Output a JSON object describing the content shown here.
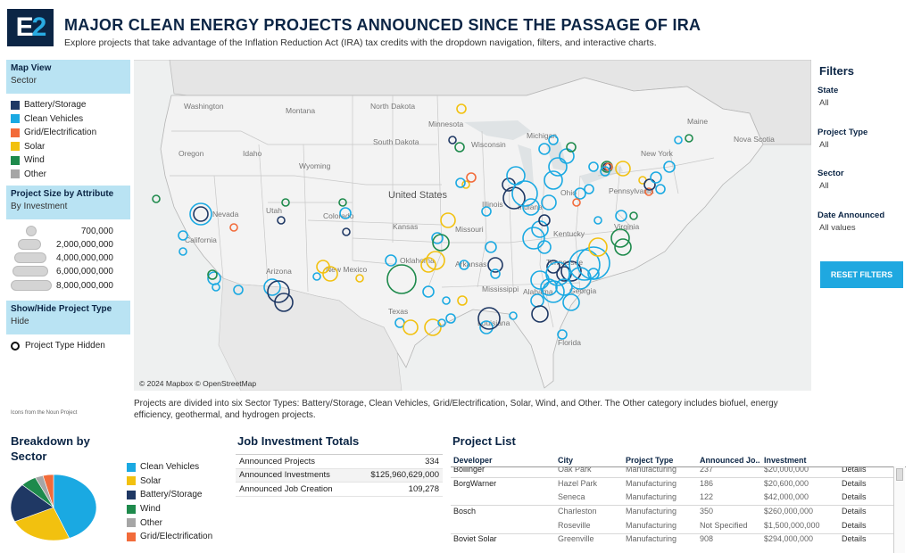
{
  "header": {
    "logo_text": "E2",
    "title": "MAJOR CLEAN ENERGY PROJECTS ANNOUNCED SINCE THE PASSAGE OF IRA",
    "subtitle": "Explore projects that take advantage of the Inflation Reduction Act (IRA) tax credits with the dropdown navigation, filters, and interactive charts."
  },
  "left_panel": {
    "map_view": {
      "label": "Map View",
      "value": "Sector"
    },
    "sector_legend": [
      {
        "label": "Battery/Storage",
        "color": "#1f3864"
      },
      {
        "label": "Clean Vehicles",
        "color": "#1aa9e2"
      },
      {
        "label": "Grid/Electrification",
        "color": "#f26b3a"
      },
      {
        "label": "Solar",
        "color": "#f2c10f"
      },
      {
        "label": "Wind",
        "color": "#1e8a4c"
      },
      {
        "label": "Other",
        "color": "#a6a6a6"
      }
    ],
    "size_by": {
      "label": "Project Size by Attribute",
      "value": "By Investment"
    },
    "size_legend": [
      "700,000",
      "2,000,000,000",
      "4,000,000,000",
      "6,000,000,000",
      "8,000,000,000"
    ],
    "show_hide": {
      "label": "Show/Hide Project Type",
      "value": "Hide"
    },
    "hidden_label": "Project Type Hidden",
    "credit": "Icons from the Noun Project"
  },
  "map": {
    "attribution": "© 2024 Mapbox © OpenStreetMap",
    "labels": [
      "Washington",
      "Montana",
      "North Dakota",
      "Minnesota",
      "Oregon",
      "Idaho",
      "South Dakota",
      "Wisconsin",
      "Michigan",
      "Wyoming",
      "Nevada",
      "Utah",
      "Colorado",
      "Kansas",
      "Illinois",
      "Indiana",
      "Ohio",
      "Pennsylvania",
      "New York",
      "Missouri",
      "Kentucky",
      "California",
      "Arizona",
      "New Mexico",
      "Oklahoma",
      "Arkansas",
      "Tennessee",
      "Mississippi",
      "Alabama",
      "Georgia",
      "Texas",
      "Louisiana",
      "Florida",
      "Nova Scotia",
      "Maine",
      "Virginia",
      "United States"
    ]
  },
  "note": "Projects are divided into six Sector Types: Battery/Storage, Clean Vehicles, Grid/Electrification, Solar, Wind, and Other. The Other category includes biofuel, energy efficiency, geothermal, and hydrogen projects.",
  "filters": {
    "title": "Filters",
    "items": [
      {
        "label": "State",
        "value": "All"
      },
      {
        "label": "Project Type",
        "value": "All"
      },
      {
        "label": "Sector",
        "value": "All"
      },
      {
        "label": "Date Announced",
        "value": "All values"
      }
    ],
    "reset_label": "RESET FILTERS"
  },
  "breakdown": {
    "title_line1": "Breakdown by",
    "title_line2": "Sector",
    "legend": [
      {
        "label": "Clean Vehicles",
        "color": "#1aa9e2"
      },
      {
        "label": "Solar",
        "color": "#f2c10f"
      },
      {
        "label": "Battery/Storage",
        "color": "#1f3864"
      },
      {
        "label": "Wind",
        "color": "#1e8a4c"
      },
      {
        "label": "Other",
        "color": "#a6a6a6"
      },
      {
        "label": "Grid/Electrification",
        "color": "#f26b3a"
      }
    ]
  },
  "chart_data": {
    "type": "pie",
    "categories": [
      "Clean Vehicles",
      "Solar",
      "Battery/Storage",
      "Wind",
      "Other",
      "Grid/Electrification"
    ],
    "values": [
      44,
      24,
      19,
      6,
      3,
      4
    ]
  },
  "job_totals": {
    "title": "Job Investment Totals",
    "rows": [
      {
        "label": "Announced Projects",
        "value": "334"
      },
      {
        "label": "Announced Investments",
        "value": "$125,960,629,000"
      },
      {
        "label": "Announced Job Creation",
        "value": "109,278"
      }
    ]
  },
  "project_list": {
    "title": "Project List",
    "columns": [
      "Developer",
      "City",
      "Project Type",
      "Announced Jo..",
      "Investment"
    ],
    "rows": [
      {
        "developer": "Bollinger",
        "city": "Oak Park",
        "type": "Manufacturing",
        "jobs": "237",
        "investment": "$20,000,000",
        "details": "Details"
      },
      {
        "developer": "BorgWarner",
        "city": "Hazel Park",
        "type": "Manufacturing",
        "jobs": "186",
        "investment": "$20,600,000",
        "details": "Details"
      },
      {
        "developer": "",
        "city": "Seneca",
        "type": "Manufacturing",
        "jobs": "122",
        "investment": "$42,000,000",
        "details": "Details"
      },
      {
        "developer": "Bosch",
        "city": "Charleston",
        "type": "Manufacturing",
        "jobs": "350",
        "investment": "$260,000,000",
        "details": "Details"
      },
      {
        "developer": "",
        "city": "Roseville",
        "type": "Manufacturing",
        "jobs": "Not Specified",
        "investment": "$1,500,000,000",
        "details": "Details"
      },
      {
        "developer": "Boviet Solar",
        "city": "Greenville",
        "type": "Manufacturing",
        "jobs": "908",
        "investment": "$294,000,000",
        "details": "Details"
      }
    ]
  }
}
